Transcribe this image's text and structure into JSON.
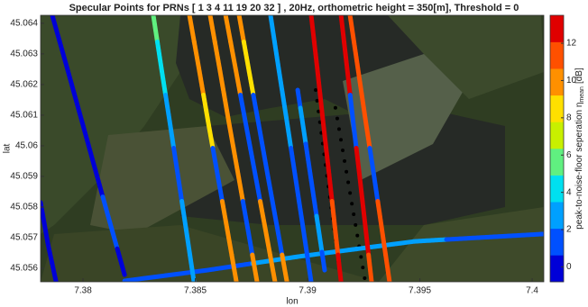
{
  "chart_data": {
    "type": "scatter",
    "title": "Specular Points for PRNs [ 1   3   4  11  19  20  32 ] , 20Hz, orthometric height = 350[m], Threshold = 0",
    "x_label": "lon",
    "y_label": "lat",
    "colorbar_label": "peak-to-noise-floor seperation η",
    "colorbar_label_sub": "mean",
    "colorbar_label_unit": "[dB]",
    "xlim": [
      7.37811,
      7.40052
    ],
    "xticks": [
      7.38,
      7.385,
      7.39,
      7.395,
      7.4
    ],
    "ylim": [
      45.05556,
      45.06426
    ],
    "yticks": [
      45.056,
      45.057,
      45.058,
      45.059,
      45.06,
      45.061,
      45.062,
      45.063,
      45.064
    ],
    "clim": [
      -0.8,
      13.5
    ],
    "cticks": [
      0,
      2,
      4,
      6,
      8,
      10,
      12
    ],
    "colormap": [
      "#0000d8",
      "#0050ff",
      "#00a0ff",
      "#00e0f0",
      "#60f080",
      "#c8f000",
      "#ffe000",
      "#ff9000",
      "#ff5000",
      "#e00000"
    ],
    "series": [
      {
        "lon": [
          7.37863,
          7.37928,
          7.37992,
          7.38056,
          7.3812,
          7.38185
        ],
        "lat": [
          45.06426,
          45.06257,
          45.06088,
          45.05918,
          45.05749,
          45.05579
        ],
        "values": [
          0,
          0,
          0,
          0,
          1,
          0
        ]
      },
      {
        "lon": [
          7.37811,
          7.37843,
          7.3788
        ],
        "lat": [
          45.05815,
          45.05682,
          45.05556
        ],
        "values": [
          0,
          0,
          0
        ]
      },
      {
        "lon": [
          7.38185,
          7.38554,
          7.38956,
          7.39478,
          7.39759,
          7.4005
        ],
        "lat": [
          45.05559,
          45.05594,
          45.05638,
          45.05688,
          45.057,
          45.05712
        ],
        "values": [
          1,
          1,
          3,
          3,
          1,
          1
        ]
      },
      {
        "lon": [
          7.38313,
          7.38349,
          7.38386,
          7.38422,
          7.38458,
          7.38494
        ],
        "lat": [
          45.06426,
          45.06253,
          45.06079,
          45.05906,
          45.05732,
          45.05556
        ],
        "values": [
          5,
          4,
          3,
          1,
          3,
          3
        ]
      },
      {
        "lon": [
          7.38474,
          7.38516,
          7.38557,
          7.38599,
          7.38641,
          7.38683
        ],
        "lat": [
          45.06426,
          45.06253,
          45.06079,
          45.05906,
          45.05732,
          45.05556
        ],
        "values": [
          10,
          10,
          9,
          1,
          10,
          10
        ]
      },
      {
        "lon": [
          7.38566,
          7.38608,
          7.38649,
          7.38691,
          7.38733,
          7.38775
        ],
        "lat": [
          45.06426,
          45.06253,
          45.06079,
          45.05906,
          45.05732,
          45.05556
        ],
        "values": [
          10,
          10,
          10,
          10,
          2,
          10
        ]
      },
      {
        "lon": [
          7.38635,
          7.38679,
          7.38723,
          7.38767,
          7.38811,
          7.38855
        ],
        "lat": [
          45.06426,
          45.06253,
          45.06079,
          45.05906,
          45.05732,
          45.05556
        ],
        "values": [
          10,
          10,
          1,
          2,
          10,
          10
        ]
      },
      {
        "lon": [
          7.38695,
          7.38737,
          7.3878,
          7.38822,
          7.38865,
          7.38908
        ],
        "lat": [
          45.06426,
          45.06253,
          45.06079,
          45.05906,
          45.05732,
          45.05556
        ],
        "values": [
          10,
          9,
          1,
          1,
          2,
          10
        ]
      },
      {
        "lon": [
          7.38835,
          7.38871,
          7.38908,
          7.38944,
          7.3898,
          7.39016
        ],
        "lat": [
          45.06426,
          45.06253,
          45.06079,
          45.05906,
          45.05732,
          45.05556
        ],
        "values": [
          3,
          3,
          3,
          1,
          1,
          2
        ]
      },
      {
        "lon": [
          7.38956,
          7.3898,
          7.39004,
          7.39028,
          7.39052,
          7.39076
        ],
        "lat": [
          45.06182,
          45.06065,
          45.05947,
          45.05829,
          45.05712,
          45.05594
        ],
        "values": [
          1,
          3,
          1,
          1,
          3,
          1
        ]
      },
      {
        "lon": [
          7.39016,
          7.39043,
          7.39069,
          7.39096,
          7.39122,
          7.39149
        ],
        "lat": [
          45.06426,
          45.06253,
          45.06079,
          45.05906,
          45.05732,
          45.05556
        ],
        "values": [
          13,
          13,
          13,
          13,
          12,
          13
        ]
      },
      {
        "lon": [
          7.39149,
          7.39176,
          7.39203,
          7.39231,
          7.39258,
          7.39285
        ],
        "lat": [
          45.06426,
          45.06253,
          45.06079,
          45.05906,
          45.05732,
          45.05556
        ],
        "values": [
          13,
          13,
          2,
          13,
          13,
          12
        ]
      },
      {
        "lon": [
          7.39189,
          7.39224,
          7.39259,
          7.39295,
          7.3933,
          7.39365
        ],
        "lat": [
          45.06426,
          45.06253,
          45.06079,
          45.05906,
          45.05732,
          45.05556
        ],
        "values": [
          11,
          11,
          12,
          1,
          11,
          11
        ]
      }
    ],
    "reference_tracks": [
      {
        "color": "#000000",
        "lon": [
          7.39036,
          7.39149
        ],
        "lat": [
          45.06182,
          45.05556
        ]
      },
      {
        "color": "#000000",
        "lon": [
          7.39124,
          7.39257
        ],
        "lat": [
          45.06124,
          45.05556
        ]
      }
    ]
  }
}
